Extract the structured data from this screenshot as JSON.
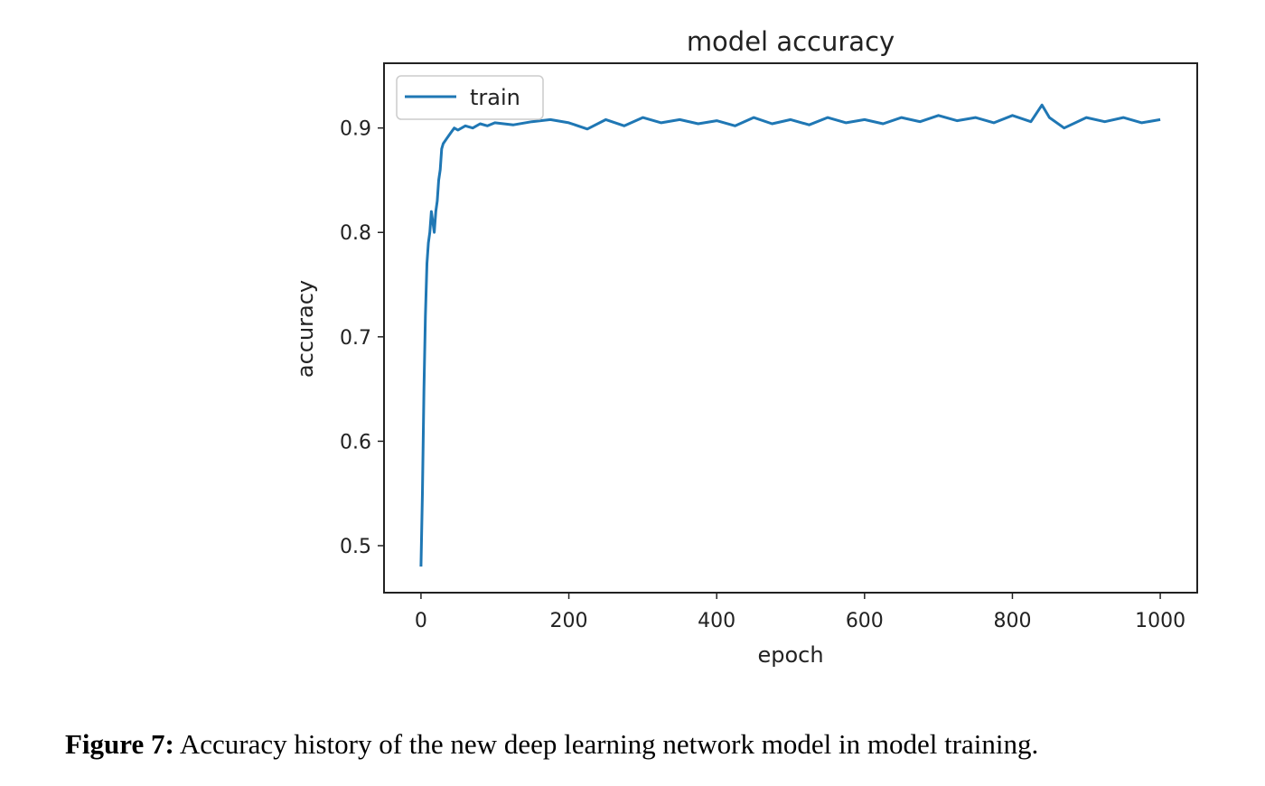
{
  "chart_data": {
    "type": "line",
    "title": "model accuracy",
    "xlabel": "epoch",
    "ylabel": "accuracy",
    "xlim": [
      -50,
      1050
    ],
    "ylim": [
      0.455,
      0.962
    ],
    "xticks": [
      0,
      200,
      400,
      600,
      800,
      1000
    ],
    "xtick_labels": [
      "0",
      "200",
      "400",
      "600",
      "800",
      "1000"
    ],
    "yticks": [
      0.5,
      0.6,
      0.7,
      0.8,
      0.9
    ],
    "ytick_labels": [
      "0.5",
      "0.6",
      "0.7",
      "0.8",
      "0.9"
    ],
    "grid": false,
    "legend": {
      "location": "upper-left",
      "entries": [
        "train"
      ]
    },
    "series": [
      {
        "name": "train",
        "color": "#1f77b4",
        "x": [
          0,
          2,
          4,
          6,
          8,
          10,
          12,
          14,
          16,
          18,
          20,
          22,
          24,
          26,
          28,
          30,
          35,
          40,
          45,
          50,
          60,
          70,
          80,
          90,
          100,
          125,
          150,
          175,
          200,
          225,
          250,
          275,
          300,
          325,
          350,
          375,
          400,
          425,
          450,
          475,
          500,
          525,
          550,
          575,
          600,
          625,
          650,
          675,
          700,
          725,
          750,
          775,
          800,
          825,
          840,
          850,
          870,
          900,
          925,
          950,
          975,
          1000
        ],
        "y": [
          0.48,
          0.55,
          0.65,
          0.72,
          0.77,
          0.79,
          0.8,
          0.82,
          0.81,
          0.8,
          0.82,
          0.83,
          0.85,
          0.86,
          0.88,
          0.885,
          0.89,
          0.895,
          0.9,
          0.898,
          0.902,
          0.9,
          0.904,
          0.902,
          0.905,
          0.903,
          0.906,
          0.908,
          0.905,
          0.899,
          0.908,
          0.902,
          0.91,
          0.905,
          0.908,
          0.904,
          0.907,
          0.902,
          0.91,
          0.904,
          0.908,
          0.903,
          0.91,
          0.905,
          0.908,
          0.904,
          0.91,
          0.906,
          0.912,
          0.907,
          0.91,
          0.905,
          0.912,
          0.906,
          0.922,
          0.91,
          0.9,
          0.91,
          0.906,
          0.91,
          0.905,
          0.908
        ]
      }
    ]
  },
  "caption": {
    "label": "Figure 7:",
    "text": " Accuracy history of the new deep learning network model in model training."
  }
}
